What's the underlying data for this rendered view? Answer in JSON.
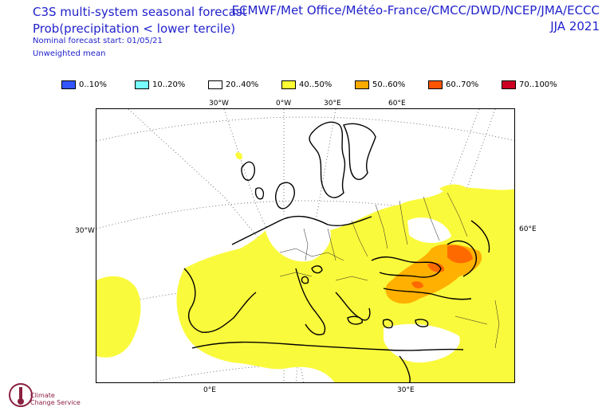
{
  "header": {
    "title": "C3S multi-system seasonal forecast",
    "variable": "Prob(precipitation < lower tercile)",
    "start": "Nominal forecast start: 01/05/21",
    "mean": "Unweighted mean",
    "centres": "ECMWF/Met Office/Météo-France/CMCC/DWD/NCEP/JMA/ECCC",
    "season": "JJA 2021"
  },
  "legend": [
    {
      "label": "0..10%",
      "color": "#3355ff"
    },
    {
      "label": "10..20%",
      "color": "#77ffff"
    },
    {
      "label": "20..40%",
      "color": "#ffffff"
    },
    {
      "label": "40..50%",
      "color": "#ffff33"
    },
    {
      "label": "50..60%",
      "color": "#ffaa00"
    },
    {
      "label": "60..70%",
      "color": "#ff5500"
    },
    {
      "label": "70..100%",
      "color": "#cc0022"
    }
  ],
  "axes": {
    "top": [
      "30°W",
      "0°W",
      "30°E",
      "60°E"
    ],
    "left": "30°W",
    "right": "60°E",
    "bottom": [
      "0°E",
      "30°E"
    ]
  },
  "logo": {
    "line1": "Climate",
    "line2": "Change Service"
  },
  "map": {
    "region": "Europe",
    "fill_colors": {
      "dominant": "#fafa3c",
      "orange": "#ffb000",
      "darkorange": "#ff6a00"
    }
  }
}
